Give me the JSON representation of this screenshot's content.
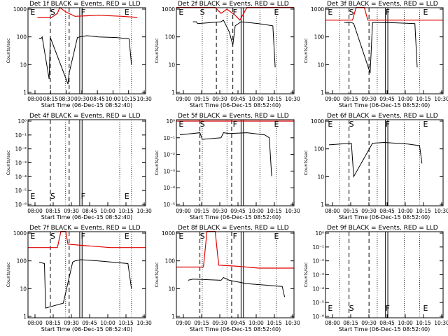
{
  "colors": {
    "events": "#000000",
    "lld": "#e00000",
    "background": "#ffffff"
  },
  "chart_data": [
    {
      "type": "line",
      "title": "Det 1f BLACK = Events, RED = LLD",
      "xlabel": "Start Time (06-Dec-15 08:52:40)",
      "ylabel": "Counts/sec",
      "x_tick_labels": [
        "08:00",
        "08:15",
        "08:30",
        "09:30",
        "08:45",
        "10:00",
        "10:15",
        "10:30"
      ],
      "y_tick_labels": [
        "1",
        "10",
        "100",
        "1000"
      ],
      "markers": [
        "E",
        "S",
        "F",
        "E"
      ],
      "has_data": true,
      "series": [
        {
          "name": "Events",
          "color": "#000000",
          "x": [
            0.095,
            0.11,
            0.12,
            0.18,
            0.19,
            0.34,
            0.35,
            0.42,
            0.44,
            0.5,
            0.6,
            0.75,
            0.86,
            0.88
          ],
          "y": [
            90,
            85,
            100,
            3,
            95,
            2,
            5,
            95,
            100,
            110,
            100,
            95,
            85,
            10
          ]
        },
        {
          "name": "LLD",
          "color": "#e00000",
          "x": [
            0.08,
            0.2,
            0.25,
            0.27,
            0.32,
            0.4,
            0.6,
            0.8,
            0.93
          ],
          "y": [
            500,
            500,
            700,
            1200,
            800,
            550,
            600,
            550,
            500
          ]
        }
      ]
    },
    {
      "type": "line",
      "title": "Det 2f BLACK = Events, RED = LLD",
      "xlabel": "Start Time (06-Dec-15 08:52:40)",
      "ylabel": "Counts/sec",
      "x_tick_labels": [
        "09:00",
        "09:15",
        "09:30",
        "09:45",
        "10:00",
        "10:15",
        "10:30"
      ],
      "y_tick_labels": [
        "1",
        "10",
        "100",
        "1000"
      ],
      "markers": [
        "E",
        "S",
        "F",
        "E"
      ],
      "has_data": true,
      "series": [
        {
          "name": "Events",
          "color": "#000000",
          "x": [
            0.14,
            0.17,
            0.18,
            0.38,
            0.4,
            0.45,
            0.48,
            0.5,
            0.55,
            0.7,
            0.82,
            0.84
          ],
          "y": [
            350,
            350,
            300,
            350,
            400,
            150,
            50,
            250,
            350,
            300,
            250,
            8
          ]
        },
        {
          "name": "LLD",
          "color": "#e00000",
          "x": [
            0.0,
            0.2,
            0.28,
            0.33,
            0.38,
            0.43,
            0.5,
            0.54,
            0.6,
            0.8,
            1.0
          ],
          "y": [
            1300,
            1300,
            1800,
            1200,
            700,
            1000,
            600,
            400,
            1300,
            1300,
            1300
          ]
        }
      ]
    },
    {
      "type": "line",
      "title": "Det 3f BLACK = Events, RED = LLD",
      "xlabel": "Start Time (06-Dec-15 08:52:40)",
      "ylabel": "Counts/sec",
      "x_tick_labels": [
        "09:00",
        "09:15",
        "09:30",
        "09:45",
        "10:00",
        "10:15",
        "10:30"
      ],
      "y_tick_labels": [
        "1",
        "10",
        "100",
        "1000"
      ],
      "markers": [
        "E",
        "S",
        "F",
        "E"
      ],
      "has_data": true,
      "series": [
        {
          "name": "Events",
          "color": "#000000",
          "x": [
            0.16,
            0.22,
            0.24,
            0.38,
            0.4,
            0.45,
            0.6,
            0.76,
            0.78
          ],
          "y": [
            330,
            330,
            300,
            5,
            330,
            330,
            320,
            300,
            8
          ]
        },
        {
          "name": "LLD",
          "color": "#e00000",
          "x": [
            0.0,
            0.23,
            0.26,
            0.33,
            0.36,
            0.45,
            0.7,
            1.0
          ],
          "y": [
            400,
            400,
            1200,
            1200,
            400,
            400,
            400,
            400
          ]
        }
      ]
    },
    {
      "type": "line",
      "title": "Det 4f BLACK = Events, RED = LLD",
      "xlabel": "Start Time (06-Dec-15 08:52:40)",
      "ylabel": "Counts/sec",
      "x_tick_labels": [
        "08:00",
        "08:15",
        "09:30",
        "08:45",
        "10:00",
        "10:15",
        "10:30"
      ],
      "y_tick_labels": [
        "10⁻⁶",
        "10⁻⁵",
        "10⁻⁴",
        "10⁻³",
        "10⁻²",
        "10⁻¹",
        "10⁰"
      ],
      "markers": [
        "E",
        "S",
        "F",
        "E"
      ],
      "has_data": false,
      "series": []
    },
    {
      "type": "line",
      "title": "Det 5f BLACK = Events, RED = LLD",
      "xlabel": "Start Time (06-Dec-15 08:52:40)",
      "ylabel": "Counts/sec",
      "x_tick_labels": [
        "09:00",
        "09:15",
        "09:30",
        "09:45",
        "10:00",
        "10:15",
        "10:30"
      ],
      "y_tick_labels": [
        "10⁻⁵",
        "10⁻⁴",
        "10⁻³",
        "10⁻²",
        "10⁻¹",
        "10⁰"
      ],
      "markers": [
        "E",
        "S",
        "F",
        "E"
      ],
      "has_data": true,
      "series": [
        {
          "name": "Events",
          "color": "#000000",
          "x": [
            0.03,
            0.2,
            0.22,
            0.38,
            0.4,
            0.45,
            0.6,
            0.75,
            0.79,
            0.81
          ],
          "y": [
            0.15,
            0.2,
            0.08,
            0.1,
            0.2,
            0.18,
            0.2,
            0.15,
            0.1,
            0.0005
          ]
        },
        {
          "name": "LLD",
          "color": "#e00000",
          "x": [
            0.0,
            1.0
          ],
          "y": [
            1,
            1
          ]
        }
      ]
    },
    {
      "type": "line",
      "title": "Det 6f BLACK = Events, RED = LLD",
      "xlabel": "Start Time (06-Dec-15 08:52:40)",
      "ylabel": "Counts/sec",
      "x_tick_labels": [
        "08:00",
        "09:15",
        "09:30",
        "08:45",
        "10:00",
        "10:15",
        "10:30"
      ],
      "y_tick_labels": [
        "1",
        "10",
        "100",
        "1000"
      ],
      "markers": [
        "E",
        "S",
        "F",
        "E"
      ],
      "has_data": true,
      "series": [
        {
          "name": "Events",
          "color": "#000000",
          "x": [
            0.03,
            0.22,
            0.24,
            0.4,
            0.5,
            0.7,
            0.8,
            0.82
          ],
          "y": [
            140,
            160,
            10,
            160,
            170,
            150,
            130,
            30
          ]
        }
      ]
    },
    {
      "type": "line",
      "title": "Det 7f BLACK = Events, RED = LLD",
      "xlabel": "Start Time (06-Dec-15 08:52:40)",
      "ylabel": "Counts/sec",
      "x_tick_labels": [
        "08:00",
        "08:15",
        "09:30",
        "09:45",
        "10:00",
        "10:15",
        "10:30"
      ],
      "y_tick_labels": [
        "1",
        "10",
        "100",
        "1000"
      ],
      "markers": [
        "E",
        "S",
        "F",
        "E"
      ],
      "has_data": true,
      "series": [
        {
          "name": "Events",
          "color": "#000000",
          "x": [
            0.095,
            0.14,
            0.15,
            0.3,
            0.38,
            0.4,
            0.45,
            0.6,
            0.85,
            0.88
          ],
          "y": [
            90,
            80,
            2,
            3,
            90,
            100,
            110,
            100,
            80,
            10
          ]
        },
        {
          "name": "LLD",
          "color": "#e00000",
          "x": [
            0.0,
            0.25,
            0.28,
            0.32,
            0.34,
            0.5,
            0.7,
            1.0
          ],
          "y": [
            300,
            300,
            1200,
            1200,
            400,
            350,
            300,
            300
          ]
        }
      ]
    },
    {
      "type": "line",
      "title": "Det 8f BLACK = Events, RED = LLD",
      "xlabel": "Start Time (06-Dec-15 08:52:40)",
      "ylabel": "Counts/sec",
      "x_tick_labels": [
        "09:00",
        "09:15",
        "09:30",
        "09:45",
        "10:00",
        "10:15",
        "10:30"
      ],
      "y_tick_labels": [
        "1",
        "10",
        "100",
        "1000"
      ],
      "markers": [
        "E",
        "S",
        "F",
        "E"
      ],
      "has_data": true,
      "series": [
        {
          "name": "Events",
          "color": "#000000",
          "x": [
            0.1,
            0.14,
            0.38,
            0.4,
            0.45,
            0.6,
            0.9,
            0.92
          ],
          "y": [
            20,
            22,
            20,
            25,
            20,
            15,
            12,
            5
          ]
        },
        {
          "name": "LLD",
          "color": "#e00000",
          "x": [
            0.0,
            0.23,
            0.26,
            0.33,
            0.36,
            0.5,
            0.7,
            1.0
          ],
          "y": [
            60,
            60,
            1200,
            1200,
            70,
            65,
            55,
            55
          ]
        }
      ]
    },
    {
      "type": "line",
      "title": "Det 9f BLACK = Events, RED = LLD",
      "xlabel": "Start Time (06-Dec-15 08:52:40)",
      "ylabel": "Counts/sec",
      "x_tick_labels": [
        "08:00",
        "08:15",
        "09:30",
        "08:45",
        "10:00",
        "10:15",
        "10:30"
      ],
      "y_tick_labels": [
        "10⁻⁶",
        "10⁻⁵",
        "10⁻⁴",
        "10⁻³",
        "10⁻²",
        "10⁻¹",
        "10⁰"
      ],
      "markers": [
        "E",
        "S",
        "F",
        "E"
      ],
      "has_data": false,
      "series": []
    }
  ]
}
